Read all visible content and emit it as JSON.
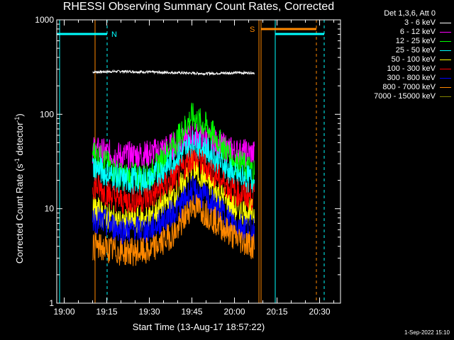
{
  "chart_data": {
    "type": "line",
    "title": "RHESSI Observing Summary Count Rates, Corrected",
    "xlabel": "Start Time (13-Aug-17 18:57:22)",
    "ylabel": "Corrected Count Rate (s⁻¹ detector⁻¹)",
    "yscale": "log",
    "ylim": [
      1,
      1000
    ],
    "y_tick_labels": [
      "1",
      "10",
      "100",
      "1000"
    ],
    "x_tick_labels": [
      "19:00",
      "19:15",
      "19:30",
      "19:45",
      "20:00",
      "20:15",
      "20:30"
    ],
    "legend_header": "Det 1,3,6, Att 0",
    "legend_position": "right",
    "timestamp": "1-Sep-2022 15:10",
    "flags": [
      {
        "label": "N",
        "color": "#00ffff"
      },
      {
        "label": "S",
        "color": "#ff8800"
      }
    ],
    "series": [
      {
        "name": "3 - 6 keV",
        "color": "#ffffff",
        "x": [
          "19:10",
          "19:20",
          "19:30",
          "19:40",
          "19:50",
          "20:00",
          "20:07"
        ],
        "y": [
          280,
          285,
          280,
          275,
          270,
          275,
          275
        ]
      },
      {
        "name": "6 - 12 keV",
        "color": "#ff00ff",
        "x": [
          "19:10",
          "19:20",
          "19:30",
          "19:40",
          "19:45",
          "19:50",
          "20:00",
          "20:07"
        ],
        "y": [
          42,
          36,
          38,
          48,
          60,
          55,
          40,
          38
        ]
      },
      {
        "name": "12 - 25 keV",
        "color": "#00ff00",
        "x": [
          "19:10",
          "19:20",
          "19:30",
          "19:40",
          "19:45",
          "19:50",
          "20:00",
          "20:07"
        ],
        "y": [
          40,
          22,
          22,
          55,
          95,
          75,
          32,
          25
        ]
      },
      {
        "name": "25 - 50 keV",
        "color": "#00ffff",
        "x": [
          "19:10",
          "19:20",
          "19:30",
          "19:40",
          "19:45",
          "19:50",
          "20:00",
          "20:07"
        ],
        "y": [
          28,
          20,
          20,
          35,
          50,
          42,
          22,
          20
        ]
      },
      {
        "name": "50 - 100 keV",
        "color": "#ffff00",
        "x": [
          "19:10",
          "19:20",
          "19:30",
          "19:40",
          "19:45",
          "19:50",
          "20:00",
          "20:07"
        ],
        "y": [
          10,
          7,
          8,
          15,
          28,
          20,
          10,
          9
        ]
      },
      {
        "name": "100 - 300 keV",
        "color": "#ff0000",
        "x": [
          "19:10",
          "19:20",
          "19:30",
          "19:40",
          "19:45",
          "19:50",
          "20:00",
          "20:07"
        ],
        "y": [
          18,
          12,
          13,
          22,
          35,
          28,
          15,
          13
        ]
      },
      {
        "name": "300 - 800 keV",
        "color": "#0000ff",
        "x": [
          "19:10",
          "19:20",
          "19:30",
          "19:40",
          "19:45",
          "19:50",
          "20:00",
          "20:07"
        ],
        "y": [
          8,
          6,
          6,
          10,
          16,
          13,
          7,
          6
        ]
      },
      {
        "name": "800 - 7000 keV",
        "color": "#ff8800",
        "x": [
          "19:10",
          "19:20",
          "19:30",
          "19:40",
          "19:45",
          "19:50",
          "20:00",
          "20:07"
        ],
        "y": [
          4,
          3.5,
          3.5,
          6,
          11,
          9,
          5,
          4
        ]
      },
      {
        "name": "7000 - 15000 keV",
        "color": "#808000",
        "x": [],
        "y": []
      }
    ]
  }
}
